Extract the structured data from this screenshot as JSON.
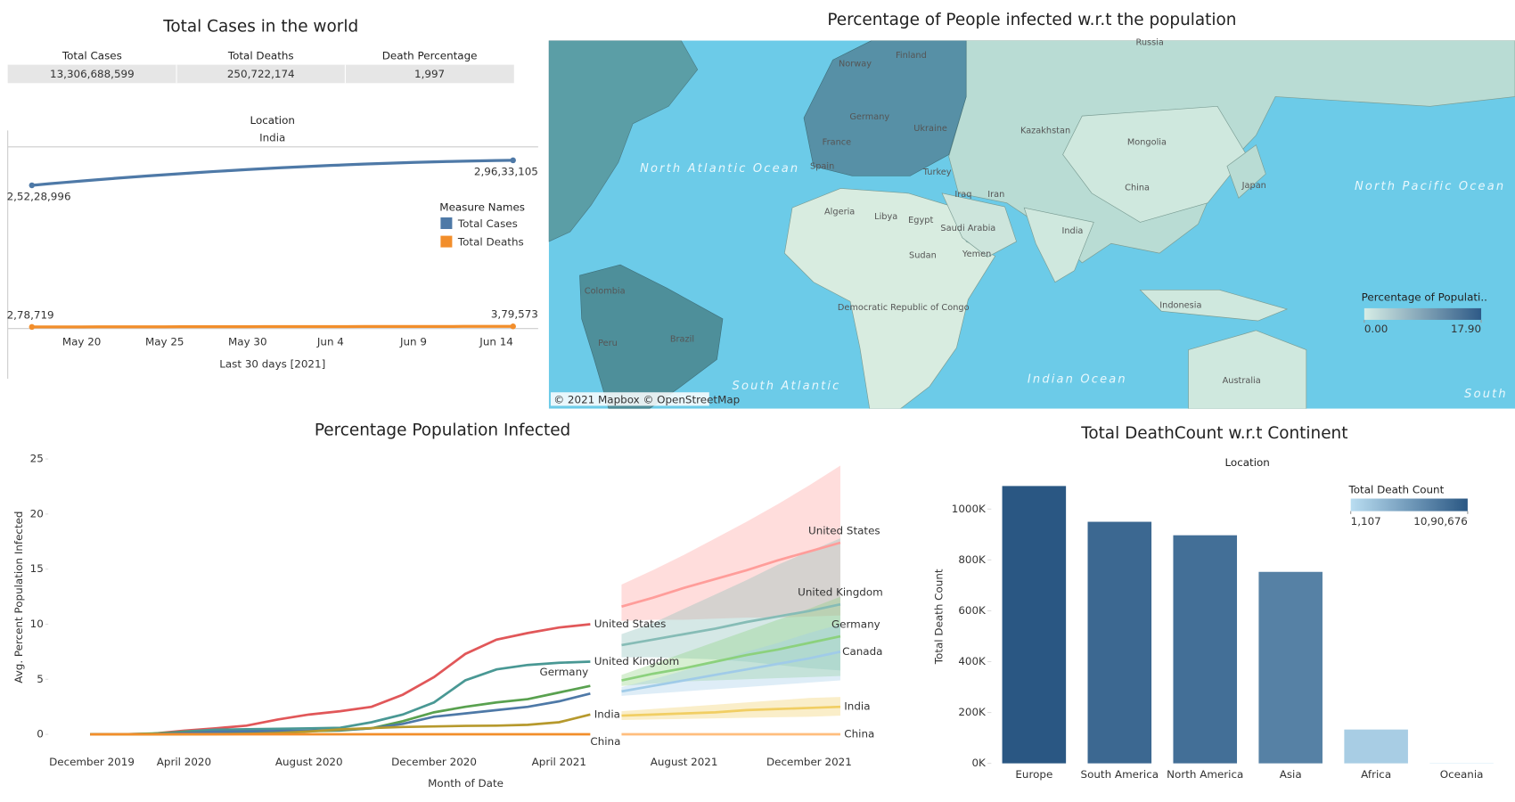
{
  "chart_data": [
    {
      "type": "table",
      "title": "Total Cases in the world",
      "columns": [
        "Total Cases",
        "Total Deaths",
        "Death Percentage"
      ],
      "rows": [
        [
          "13,306,688,599",
          "250,722,174",
          "1,997"
        ]
      ]
    },
    {
      "type": "line",
      "header": "Location",
      "facet": "India",
      "x_label": "Last 30 days [2021]",
      "legend_title": "Measure Names",
      "categories": [
        null,
        null,
        null,
        "May 20",
        null,
        null,
        null,
        null,
        "May 25",
        null,
        null,
        null,
        null,
        "May 30",
        null,
        null,
        null,
        null,
        "Jun 4",
        null,
        null,
        null,
        null,
        "Jun 9",
        null,
        null,
        null,
        null,
        "Jun 14",
        null
      ],
      "ylim": [
        0,
        32000000
      ],
      "series": [
        {
          "name": "Total Cases",
          "color": "#4e79a7",
          "values": [
            25228996,
            25488996,
            25741282,
            25985853,
            26222710,
            26451853,
            26673282,
            26886996,
            27092996,
            27291282,
            27481853,
            27664710,
            27839853,
            28007282,
            28166996,
            28318996,
            28463282,
            28599853,
            28728710,
            28849853,
            28963282,
            29068996,
            29166996,
            29257282,
            29339853,
            29414710,
            29481853,
            29541282,
            29592996,
            29633105
          ],
          "value_labels": [
            "2,52,28,996",
            null,
            null,
            null,
            null,
            null,
            null,
            null,
            null,
            null,
            null,
            null,
            null,
            null,
            null,
            null,
            null,
            null,
            null,
            null,
            null,
            null,
            null,
            null,
            null,
            null,
            null,
            null,
            null,
            "2,96,33,105"
          ]
        },
        {
          "name": "Total Deaths",
          "color": "#f28e2b",
          "values": [
            278719,
            282900,
            287100,
            291300,
            295400,
            299500,
            303500,
            307400,
            311300,
            315000,
            318600,
            322200,
            325700,
            329200,
            332600,
            336000,
            339400,
            342700,
            346000,
            349300,
            352600,
            355800,
            359100,
            362300,
            365500,
            368700,
            371800,
            374400,
            377000,
            379573
          ],
          "value_labels": [
            "2,78,719",
            null,
            null,
            null,
            null,
            null,
            null,
            null,
            null,
            null,
            null,
            null,
            null,
            null,
            null,
            null,
            null,
            null,
            null,
            null,
            null,
            null,
            null,
            null,
            null,
            null,
            null,
            null,
            null,
            "3,79,573"
          ]
        }
      ]
    },
    {
      "type": "map",
      "title": "Percentage of People infected w.r.t the population",
      "legend_title": "Percentage of Populati..",
      "legend_ticks": [
        {
          "value": 0,
          "label": "0.00"
        },
        {
          "value": 17.9,
          "label": "17.90"
        }
      ],
      "legend_colors": [
        "#d6ede6",
        "#2e5a87"
      ],
      "credit": "© 2021 Mapbox © OpenStreetMap",
      "labels": [
        "Russia",
        "Norway",
        "Finland",
        "Germany",
        "Ukraine",
        "Kazakhstan",
        "Mongolia",
        "France",
        "Spain",
        "Turkey",
        "Iraq",
        "Iran",
        "China",
        "Japan",
        "Algeria",
        "Libya",
        "Egypt",
        "Saudi Arabia",
        "India",
        "Sudan",
        "Yemen",
        "Colombia",
        "Brazil",
        "Peru",
        "Democratic Republic of Congo",
        "Indonesia",
        "Australia"
      ],
      "ocean_labels": [
        "North Atlantic Ocean",
        "North Pacific Ocean",
        "South Atlantic",
        "Indian Ocean",
        "South"
      ]
    },
    {
      "type": "forecast_line",
      "title": "Percentage Population Infected",
      "x_label": "Month of Date",
      "y_label": "Avg. Percent Population Infected",
      "categories": [
        "December 2019",
        null,
        null,
        null,
        "April 2020",
        null,
        null,
        null,
        "August 2020",
        null,
        null,
        null,
        "December 2020",
        null,
        null,
        null,
        "April 2021",
        null,
        null,
        null,
        "August 2021",
        null,
        null,
        null,
        "December 2021",
        null
      ],
      "ylim": [
        0,
        25
      ],
      "yticks": [
        0,
        5,
        10,
        15,
        20,
        25
      ],
      "series": [
        {
          "name": "United States",
          "color": "#e15759",
          "forecast_color": "#ff9d9a",
          "history_label": true,
          "values": [
            null,
            0,
            0.01,
            0.06,
            0.33,
            0.55,
            0.79,
            1.35,
            1.8,
            2.1,
            2.5,
            3.6,
            5.2,
            7.3,
            8.6,
            9.2,
            9.7,
            10.0,
            null,
            null,
            null,
            null,
            null,
            null,
            null,
            null
          ],
          "forecast": [
            null,
            null,
            null,
            null,
            null,
            null,
            null,
            null,
            null,
            null,
            null,
            null,
            null,
            null,
            null,
            null,
            null,
            null,
            11.6,
            12.4,
            13.3,
            14.1,
            14.9,
            15.8,
            16.6,
            17.4
          ],
          "forecast_lower": [
            null,
            null,
            null,
            null,
            null,
            null,
            null,
            null,
            null,
            null,
            null,
            null,
            null,
            null,
            null,
            null,
            null,
            null,
            10.3,
            10.4,
            10.4,
            10.5,
            10.6,
            10.6,
            10.7,
            10.8
          ],
          "forecast_upper": [
            null,
            null,
            null,
            null,
            null,
            null,
            null,
            null,
            null,
            null,
            null,
            null,
            null,
            null,
            null,
            null,
            null,
            null,
            13.6,
            14.9,
            16.3,
            17.8,
            19.3,
            20.9,
            22.6,
            24.4
          ]
        },
        {
          "name": "United Kingdom",
          "color": "#499894",
          "forecast_color": "#86bcb6",
          "history_label": true,
          "values": [
            null,
            0,
            0,
            0.04,
            0.25,
            0.42,
            0.46,
            0.5,
            0.55,
            0.6,
            1.1,
            1.8,
            2.9,
            4.9,
            5.9,
            6.3,
            6.5,
            6.6,
            null,
            null,
            null,
            null,
            null,
            null,
            null,
            null
          ],
          "forecast": [
            null,
            null,
            null,
            null,
            null,
            null,
            null,
            null,
            null,
            null,
            null,
            null,
            null,
            null,
            null,
            null,
            null,
            null,
            8.1,
            8.6,
            9.1,
            9.6,
            10.2,
            10.7,
            11.2,
            11.8
          ],
          "forecast_lower": [
            null,
            null,
            null,
            null,
            null,
            null,
            null,
            null,
            null,
            null,
            null,
            null,
            null,
            null,
            null,
            null,
            null,
            null,
            7.0,
            7.0,
            6.9,
            6.8,
            6.6,
            6.3,
            6.0,
            5.8
          ],
          "forecast_upper": [
            null,
            null,
            null,
            null,
            null,
            null,
            null,
            null,
            null,
            null,
            null,
            null,
            null,
            null,
            null,
            null,
            null,
            null,
            9.1,
            10.1,
            11.4,
            12.7,
            14.0,
            15.4,
            16.6,
            17.8
          ]
        },
        {
          "name": "Germany",
          "color": "#59a14f",
          "forecast_color": "#8cd17d",
          "history_label": true,
          "values": [
            null,
            0,
            0,
            0.08,
            0.19,
            0.22,
            0.23,
            0.25,
            0.29,
            0.35,
            0.55,
            1.2,
            2.0,
            2.5,
            2.9,
            3.2,
            3.8,
            4.4,
            null,
            null,
            null,
            null,
            null,
            null,
            null,
            null
          ],
          "forecast": [
            null,
            null,
            null,
            null,
            null,
            null,
            null,
            null,
            null,
            null,
            null,
            null,
            null,
            null,
            null,
            null,
            null,
            null,
            4.9,
            5.5,
            6.0,
            6.6,
            7.2,
            7.7,
            8.3,
            8.9
          ],
          "forecast_lower": [
            null,
            null,
            null,
            null,
            null,
            null,
            null,
            null,
            null,
            null,
            null,
            null,
            null,
            null,
            null,
            null,
            null,
            null,
            4.4,
            4.6,
            4.8,
            4.9,
            5.0,
            5.1,
            5.2,
            5.3
          ],
          "forecast_upper": [
            null,
            null,
            null,
            null,
            null,
            null,
            null,
            null,
            null,
            null,
            null,
            null,
            null,
            null,
            null,
            null,
            null,
            null,
            5.4,
            6.4,
            7.4,
            8.4,
            9.4,
            10.4,
            11.4,
            12.5
          ]
        },
        {
          "name": "Canada",
          "color": "#4e79a7",
          "forecast_color": "#a0cbe8",
          "history_label": false,
          "values": [
            null,
            0,
            0,
            0.02,
            0.13,
            0.24,
            0.27,
            0.3,
            0.33,
            0.4,
            0.55,
            0.95,
            1.6,
            1.9,
            2.2,
            2.5,
            3.0,
            3.7,
            null,
            null,
            null,
            null,
            null,
            null,
            null,
            null
          ],
          "forecast": [
            null,
            null,
            null,
            null,
            null,
            null,
            null,
            null,
            null,
            null,
            null,
            null,
            null,
            null,
            null,
            null,
            null,
            null,
            3.9,
            4.4,
            4.9,
            5.4,
            5.9,
            6.4,
            6.9,
            7.5
          ],
          "forecast_lower": [
            null,
            null,
            null,
            null,
            null,
            null,
            null,
            null,
            null,
            null,
            null,
            null,
            null,
            null,
            null,
            null,
            null,
            null,
            3.5,
            3.7,
            3.9,
            4.1,
            4.3,
            4.5,
            4.7,
            4.9
          ],
          "forecast_upper": [
            null,
            null,
            null,
            null,
            null,
            null,
            null,
            null,
            null,
            null,
            null,
            null,
            null,
            null,
            null,
            null,
            null,
            null,
            4.3,
            5.0,
            5.8,
            6.6,
            7.5,
            8.3,
            9.2,
            10.0
          ]
        },
        {
          "name": "India",
          "color": "#b6992d",
          "forecast_color": "#f1ce63",
          "history_label": true,
          "values": [
            null,
            0,
            0,
            0,
            0.003,
            0.014,
            0.04,
            0.12,
            0.26,
            0.45,
            0.57,
            0.67,
            0.72,
            0.77,
            0.79,
            0.87,
            1.1,
            1.8,
            null,
            null,
            null,
            null,
            null,
            null,
            null,
            null
          ],
          "forecast": [
            null,
            null,
            null,
            null,
            null,
            null,
            null,
            null,
            null,
            null,
            null,
            null,
            null,
            null,
            null,
            null,
            null,
            null,
            1.7,
            1.8,
            1.9,
            2.0,
            2.2,
            2.3,
            2.4,
            2.5
          ],
          "forecast_lower": [
            null,
            null,
            null,
            null,
            null,
            null,
            null,
            null,
            null,
            null,
            null,
            null,
            null,
            null,
            null,
            null,
            null,
            null,
            1.3,
            1.35,
            1.4,
            1.45,
            1.5,
            1.55,
            1.6,
            1.7
          ],
          "forecast_upper": [
            null,
            null,
            null,
            null,
            null,
            null,
            null,
            null,
            null,
            null,
            null,
            null,
            null,
            null,
            null,
            null,
            null,
            null,
            2.1,
            2.3,
            2.5,
            2.7,
            2.9,
            3.1,
            3.3,
            3.4
          ]
        },
        {
          "name": "China",
          "color": "#f28e2b",
          "forecast_color": "#ffbe7d",
          "history_label": true,
          "values": [
            null,
            0.001,
            0.006,
            0.006,
            0.006,
            0.006,
            0.006,
            0.006,
            0.006,
            0.006,
            0.006,
            0.006,
            0.006,
            0.006,
            0.006,
            0.006,
            0.006,
            0.006,
            null,
            null,
            null,
            null,
            null,
            null,
            null,
            null
          ],
          "forecast": [
            null,
            null,
            null,
            null,
            null,
            null,
            null,
            null,
            null,
            null,
            null,
            null,
            null,
            null,
            null,
            null,
            null,
            null,
            0.006,
            0.006,
            0.006,
            0.006,
            0.006,
            0.006,
            0.006,
            0.006
          ]
        }
      ]
    },
    {
      "type": "bar",
      "title": "Total DeathCount w.r.t Continent",
      "header": "Location",
      "y_label": "Total Death Count",
      "categories": [
        "Europe",
        "South America",
        "North America",
        "Asia",
        "Africa",
        "Oceania"
      ],
      "values": [
        1090676,
        950000,
        897000,
        753000,
        133000,
        1107
      ],
      "ylim": [
        0,
        1140000
      ],
      "yticks": [
        {
          "value": 0,
          "label": "0K"
        },
        {
          "value": 200000,
          "label": "200K"
        },
        {
          "value": 400000,
          "label": "400K"
        },
        {
          "value": 600000,
          "label": "600K"
        },
        {
          "value": 800000,
          "label": "800K"
        },
        {
          "value": 1000000,
          "label": "1000K"
        }
      ],
      "legend_title": "Total Death Count",
      "legend_ticks": [
        {
          "value": 1107,
          "label": "1,107"
        },
        {
          "value": 1090676,
          "label": "10,90,676"
        }
      ],
      "legend_colors": [
        "#b9ddf1",
        "#2a5783"
      ]
    }
  ]
}
